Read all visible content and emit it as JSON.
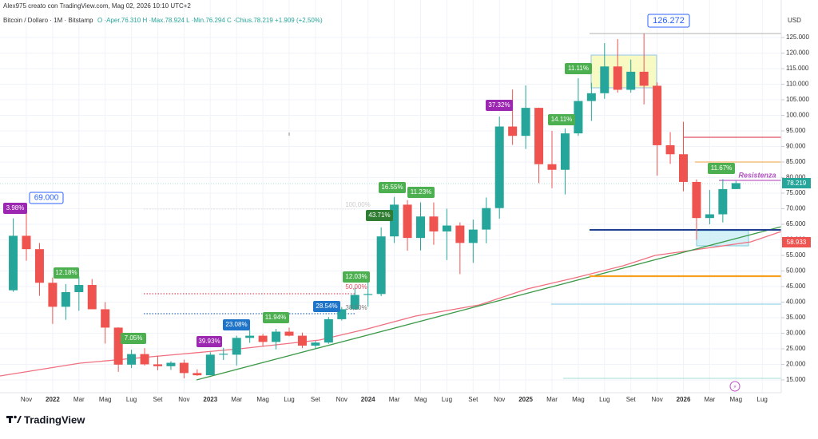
{
  "chart_data": {
    "type": "candlestick",
    "header": {
      "credit": "Alex975 creato con TradingView.com, Mag 02, 2026 10:10 UTC+2",
      "symbol": "Bitcoin / Dollaro · 1M · Bitstamp",
      "ohlc": "O ·Aper.76.310  H ·Max.78.924  L ·Min.76.294  C ·Chius.78.219  +1.909 (+2,50%)"
    },
    "currency": "USD",
    "brand": "TradingView",
    "categories": [
      null,
      "Nov",
      null,
      "2022",
      null,
      "Mar",
      null,
      "Mag",
      null,
      "Lug",
      null,
      "Set",
      null,
      "Nov",
      null,
      "2023",
      null,
      "Mar",
      null,
      "Mag",
      null,
      "Lug",
      null,
      "Set",
      null,
      "Nov",
      null,
      "2024",
      null,
      "Mar",
      null,
      "Mag",
      null,
      "Lug",
      null,
      "Set",
      null,
      "Nov",
      null,
      "2025",
      null,
      "Mar",
      null,
      "Mag",
      null,
      "Lug",
      null,
      "Set",
      null,
      "Nov",
      null,
      "2026",
      null,
      "Mar",
      null,
      "Mag",
      null,
      "Lug"
    ],
    "open": [
      43800,
      61300,
      57000,
      46200,
      38500,
      43200,
      45500,
      37700,
      31800,
      19900,
      23300,
      20000,
      19400,
      20500,
      17200,
      16500,
      23100,
      23100,
      28500,
      29200,
      27200,
      30500,
      29200,
      26000,
      27000,
      34500,
      37700,
      42300,
      42600,
      61100,
      71300,
      60600,
      67500,
      62700,
      64600,
      59000,
      63300,
      70200,
      96400,
      93400,
      102400,
      84300,
      82500,
      94200,
      104600,
      107100,
      115700,
      108200,
      114000,
      109500,
      90400,
      87500,
      78600,
      67000,
      68200,
      76310,
      null,
      null
    ],
    "high": [
      66900,
      69000,
      59000,
      47900,
      45800,
      48200,
      47400,
      40000,
      31900,
      24700,
      25200,
      22800,
      21000,
      21500,
      18400,
      23900,
      25300,
      29200,
      31000,
      29800,
      31400,
      31800,
      30200,
      27500,
      35200,
      38400,
      44700,
      48900,
      64000,
      73800,
      72800,
      72000,
      72000,
      70000,
      65600,
      66500,
      73600,
      99600,
      108300,
      109600,
      102500,
      95000,
      95800,
      111900,
      110500,
      123200,
      124500,
      117900,
      126272,
      110600,
      94600,
      97900,
      79400,
      76000,
      79500,
      78924,
      null,
      null
    ],
    "low": [
      43300,
      53300,
      42000,
      33000,
      34300,
      37200,
      37700,
      26700,
      17600,
      18800,
      19600,
      18100,
      18200,
      15500,
      16300,
      16500,
      21400,
      19600,
      26900,
      25800,
      24800,
      29000,
      25200,
      24900,
      26600,
      34100,
      37600,
      38500,
      41900,
      59000,
      56500,
      56600,
      58400,
      53500,
      49000,
      52600,
      58900,
      66800,
      90500,
      89200,
      78200,
      76600,
      74600,
      93400,
      98200,
      105300,
      107300,
      107300,
      103500,
      80600,
      84400,
      75600,
      60000,
      65000,
      65600,
      76294,
      null,
      null
    ],
    "close": [
      61300,
      57000,
      46200,
      38500,
      43200,
      45500,
      37700,
      31800,
      19900,
      23300,
      20000,
      19400,
      20500,
      17200,
      16500,
      23100,
      23400,
      28500,
      29200,
      27200,
      30500,
      29200,
      26000,
      27000,
      34500,
      37700,
      42300,
      42600,
      61100,
      71300,
      60600,
      67500,
      62700,
      64600,
      59000,
      63300,
      70200,
      96400,
      93400,
      102400,
      84300,
      82500,
      94200,
      104600,
      107100,
      115700,
      108200,
      114000,
      109500,
      90400,
      87500,
      78600,
      67000,
      68200,
      76300,
      78219,
      null,
      null
    ],
    "up_color": "#26a69a",
    "down_color": "#ef5350",
    "ylim": [
      11400,
      135000
    ],
    "yticks": [
      {
        "value": 15000,
        "label": "15.000"
      },
      {
        "value": 20000,
        "label": "20.000"
      },
      {
        "value": 25000,
        "label": "25.000"
      },
      {
        "value": 30000,
        "label": "30.000"
      },
      {
        "value": 35000,
        "label": "35.000"
      },
      {
        "value": 40000,
        "label": "40.000"
      },
      {
        "value": 45000,
        "label": "45.000"
      },
      {
        "value": 50000,
        "label": "50.000"
      },
      {
        "value": 55000,
        "label": "55.000"
      },
      {
        "value": 60000,
        "label": "60.000"
      },
      {
        "value": 65000,
        "label": "65.000"
      },
      {
        "value": 70000,
        "label": "70.000"
      },
      {
        "value": 75000,
        "label": "75.000"
      },
      {
        "value": 80000,
        "label": "80.000"
      },
      {
        "value": 85000,
        "label": "85.000"
      },
      {
        "value": 90000,
        "label": "90.000"
      },
      {
        "value": 95000,
        "label": "95.000"
      },
      {
        "value": 100000,
        "label": "100.000"
      },
      {
        "value": 105000,
        "label": "105.000"
      },
      {
        "value": 110000,
        "label": "110.000"
      },
      {
        "value": 115000,
        "label": "115.000"
      },
      {
        "value": 120000,
        "label": "120.000"
      },
      {
        "value": 125000,
        "label": "125.000"
      }
    ],
    "grid": true,
    "price_tags": [
      "78.219",
      "58.933"
    ],
    "annotations": [
      "3.98%",
      "69.000",
      "12.18%",
      "7.05%",
      "39.93%",
      "23.08%",
      "11.94%",
      "28.54%",
      "12.03%",
      "50,00%",
      "38,20%",
      "43.71%",
      "16.55%",
      "11.23%",
      "100,00%",
      "37.32%",
      "14.11%",
      "11.11%",
      "126.272",
      "11.67%",
      "Resistenza"
    ]
  }
}
